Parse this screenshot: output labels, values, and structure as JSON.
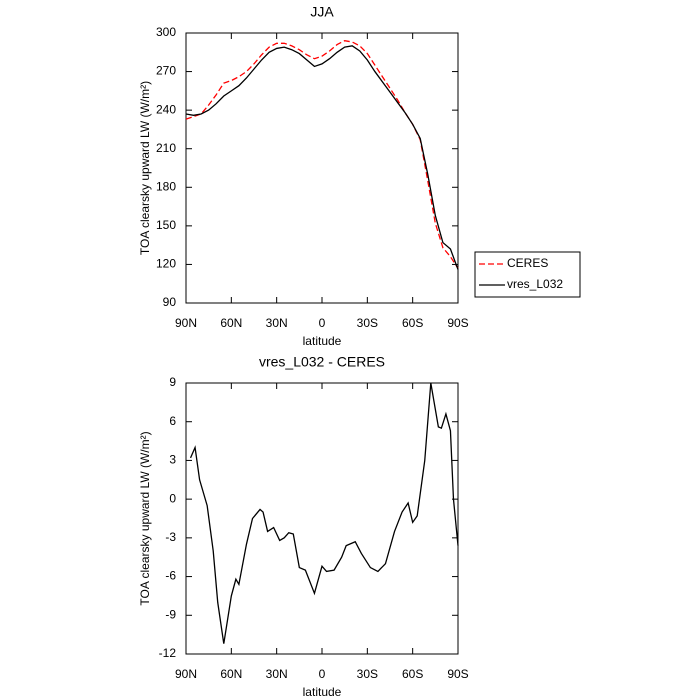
{
  "chart_data": [
    {
      "type": "line",
      "title": "JJA",
      "xlabel": "latitude",
      "ylabel": "TOA clearsky upward LW (W/m²)",
      "x": [
        90,
        85,
        80,
        75,
        70,
        65,
        60,
        55,
        50,
        45,
        40,
        35,
        30,
        25,
        20,
        15,
        10,
        5,
        0,
        -5,
        -10,
        -15,
        -20,
        -25,
        -30,
        -35,
        -40,
        -45,
        -50,
        -55,
        -60,
        -65,
        -70,
        -75,
        -80,
        -85,
        -90
      ],
      "series": [
        {
          "name": "CERES",
          "color": "#ff0000",
          "linestyle": "dashed",
          "values": [
            233,
            235,
            237,
            244,
            252,
            261,
            263,
            266,
            270,
            276,
            283,
            289,
            292,
            292,
            290,
            287,
            283,
            280,
            282,
            286,
            291,
            294,
            293,
            290,
            284,
            275,
            266,
            257,
            248,
            238,
            229,
            217,
            185,
            152,
            133,
            126,
            117
          ]
        },
        {
          "name": "vres_L032",
          "color": "#000000",
          "linestyle": "solid",
          "values": [
            237,
            236,
            237,
            240,
            245,
            251,
            255,
            259,
            265,
            272,
            279,
            285,
            288,
            289,
            287,
            284,
            279,
            274,
            276,
            280,
            285,
            289,
            290,
            286,
            279,
            270,
            262,
            254,
            246,
            238,
            229,
            218,
            190,
            158,
            137,
            132,
            116
          ]
        }
      ],
      "xlim": [
        90,
        -90
      ],
      "xticks": [
        {
          "value": 90,
          "label": "90N"
        },
        {
          "value": 60,
          "label": "60N"
        },
        {
          "value": 30,
          "label": "30N"
        },
        0,
        {
          "value": -30,
          "label": "30S"
        },
        {
          "value": -60,
          "label": "60S"
        },
        {
          "value": -90,
          "label": "90S"
        }
      ],
      "ylim": [
        90,
        300
      ],
      "yticks": [
        90,
        120,
        150,
        180,
        210,
        240,
        270,
        300
      ],
      "legend": "right"
    },
    {
      "type": "line",
      "title": "vres_L032 - CERES",
      "xlabel": "latitude",
      "ylabel": "TOA clearsky upward LW (W/m²)",
      "x": [
        87,
        84,
        81,
        76,
        72,
        69,
        65,
        60,
        57,
        55,
        50,
        46,
        41,
        39,
        36,
        32,
        28,
        25,
        22,
        19,
        15,
        11,
        5,
        0,
        -3,
        -8,
        -13,
        -16,
        -22,
        -26,
        -32,
        -37,
        -42,
        -48,
        -53,
        -57,
        -60,
        -63,
        -68,
        -72,
        -77,
        -79,
        -82,
        -85,
        -87,
        -90
      ],
      "series": [
        {
          "color": "#000000",
          "linestyle": "solid",
          "values": [
            3.2,
            4,
            1.5,
            -0.5,
            -4,
            -8,
            -11.2,
            -7.5,
            -6.2,
            -6.6,
            -3.5,
            -1.5,
            -0.8,
            -1,
            -2.5,
            -2.2,
            -3.2,
            -3,
            -2.6,
            -2.7,
            -5.3,
            -5.5,
            -7.3,
            -5.2,
            -5.6,
            -5.5,
            -4.5,
            -3.6,
            -3.3,
            -4.2,
            -5.3,
            -5.6,
            -5,
            -2.5,
            -1,
            -0.3,
            -1.8,
            -1.3,
            3,
            9,
            5.6,
            5.5,
            6.6,
            5.3,
            0,
            -3.6
          ]
        }
      ],
      "xlim": [
        90,
        -90
      ],
      "xticks": [
        {
          "value": 90,
          "label": "90N"
        },
        {
          "value": 60,
          "label": "60N"
        },
        {
          "value": 30,
          "label": "30N"
        },
        0,
        {
          "value": -30,
          "label": "30S"
        },
        {
          "value": -60,
          "label": "60S"
        },
        {
          "value": -90,
          "label": "90S"
        }
      ],
      "ylim": [
        -12,
        9
      ],
      "yticks": [
        -12,
        -9,
        -6,
        -3,
        0,
        3,
        6,
        9
      ]
    }
  ]
}
